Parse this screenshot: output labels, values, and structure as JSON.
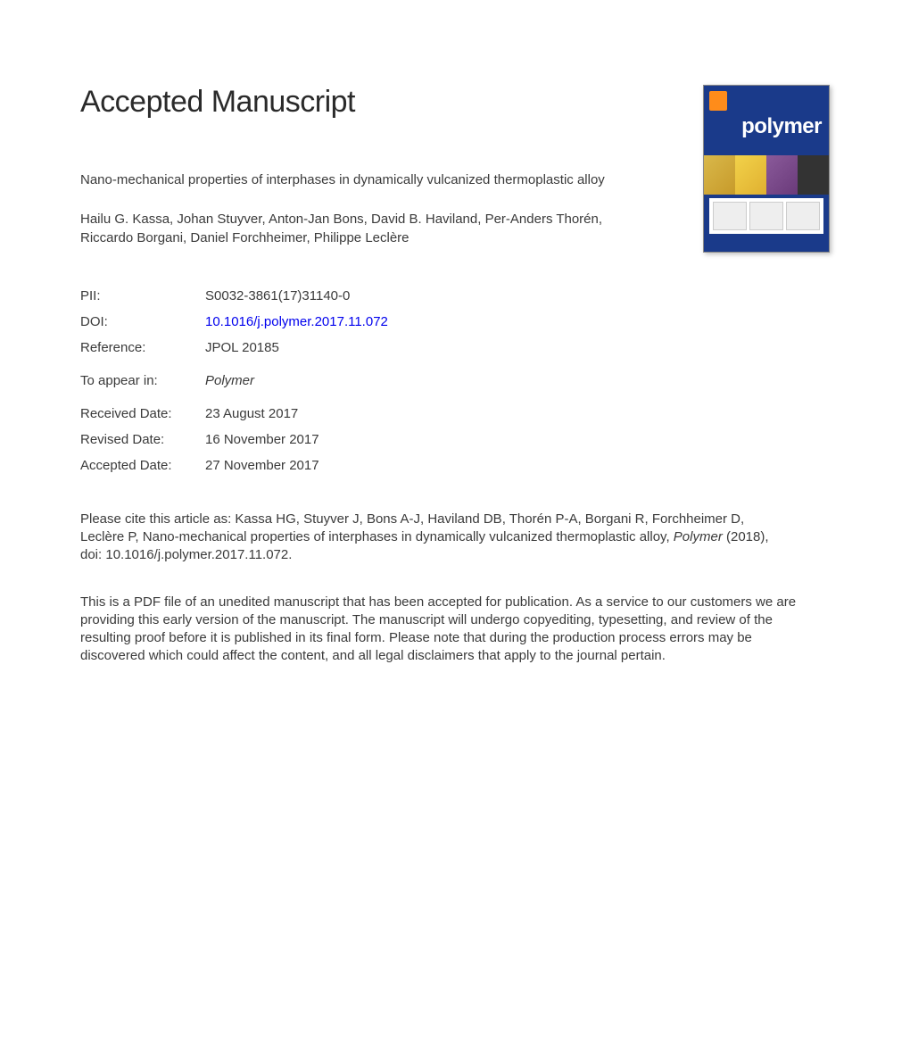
{
  "heading": "Accepted Manuscript",
  "article_title": "Nano-mechanical properties of interphases in dynamically vulcanized thermoplastic alloy",
  "authors": "Hailu G. Kassa, Johan Stuyver, Anton-Jan Bons, David B. Haviland, Per-Anders Thorén, Riccardo Borgani, Daniel Forchheimer, Philippe Leclère",
  "meta": {
    "pii_label": "PII:",
    "pii_value": "S0032-3861(17)31140-0",
    "doi_label": "DOI:",
    "doi_value": "10.1016/j.polymer.2017.11.072",
    "reference_label": "Reference:",
    "reference_value": "JPOL 20185",
    "to_appear_label": "To appear in:",
    "to_appear_value": "Polymer",
    "received_label": "Received Date:",
    "received_value": "23 August 2017",
    "revised_label": "Revised Date:",
    "revised_value": "16 November 2017",
    "accepted_label": "Accepted Date:",
    "accepted_value": "27 November 2017"
  },
  "citation_prefix": "Please cite this article as: Kassa HG, Stuyver J, Bons A-J, Haviland DB, Thorén P-A, Borgani R, Forchheimer D, Leclère P, Nano-mechanical properties of interphases in dynamically vulcanized thermoplastic alloy, ",
  "citation_journal": "Polymer",
  "citation_suffix": " (2018), doi: 10.1016/j.polymer.2017.11.072.",
  "disclaimer": "This is a PDF file of an unedited manuscript that has been accepted for publication. As a service to our customers we are providing this early version of the manuscript. The manuscript will undergo copyediting, typesetting, and review of the resulting proof before it is published in its final form. Please note that during the production process errors may be discovered which could affect the content, and all legal disclaimers that apply to the journal pertain.",
  "cover": {
    "journal_name": "polymer",
    "background_color": "#1a3a8a",
    "logo_color": "#ff8c1a",
    "title_color": "#ffffff"
  },
  "colors": {
    "text": "#3a3a3a",
    "link": "#0000ee",
    "background": "#ffffff"
  }
}
